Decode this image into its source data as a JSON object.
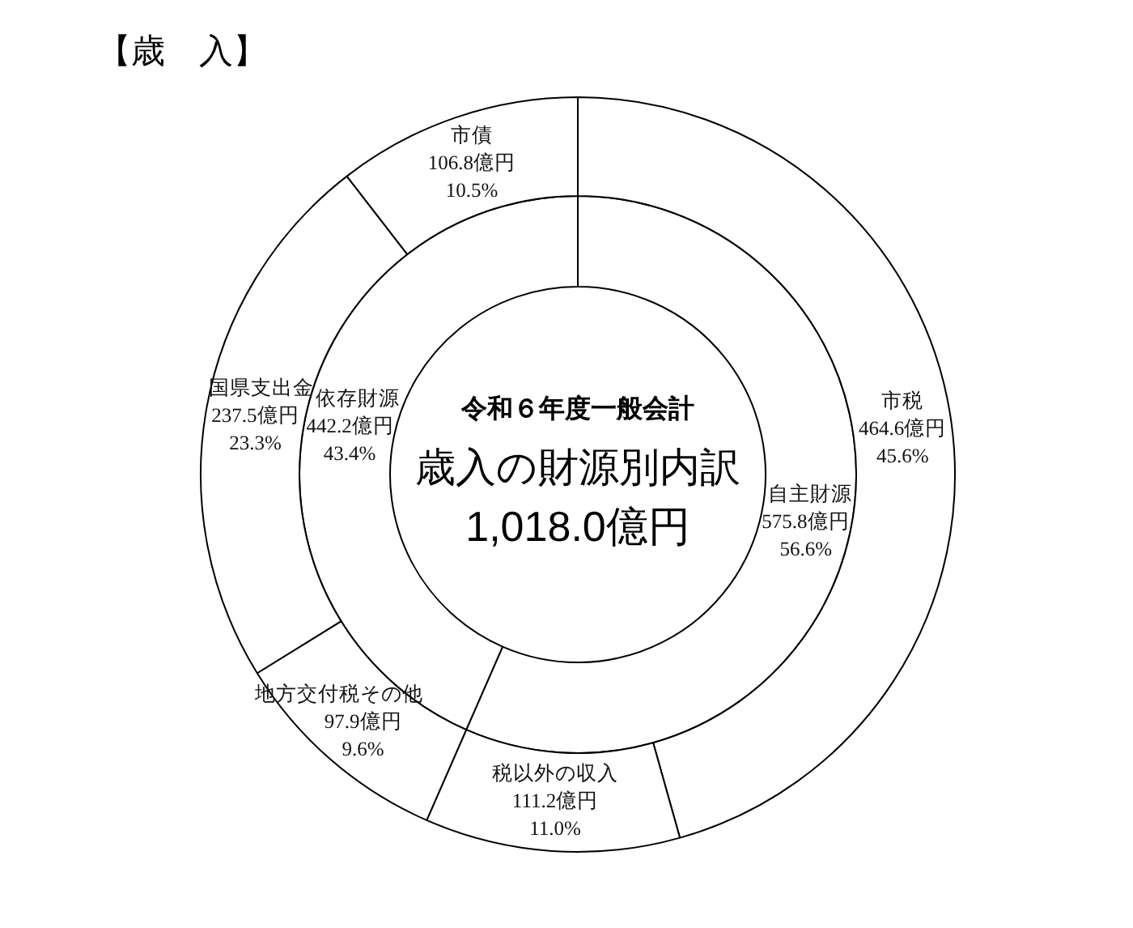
{
  "chart_data": [
    {
      "type": "donut",
      "title": "【歳　入】",
      "categories": [
        "市税",
        "税以外の収入",
        "地方交付税その他",
        "国県支出金",
        "市債"
      ],
      "values": [
        464.6,
        111.2,
        97.9,
        237.5,
        106.8
      ],
      "colors": [
        "#ffffff",
        "#ffffff",
        "#ffffff",
        "#ffffff",
        "#ffffff"
      ],
      "value_labels": [
        "464.6億円\n45.6%",
        "111.2億円\n11.0%",
        "97.9億円\n9.6%",
        "237.5億円\n23.3%",
        "106.8億円\n10.5%"
      ]
    },
    {
      "type": "donut",
      "title": "歳入の財源別内訳",
      "subtitle": "令和６年度一般会計",
      "annotations": [
        "1,018.0億円"
      ],
      "categories": [
        "自主財源",
        "依存財源"
      ],
      "values": [
        575.8,
        442.2
      ],
      "colors": [
        "#ffffff",
        "#ffffff"
      ],
      "value_labels": [
        "575.8億円\n56.6%",
        "442.2億円\n43.4%"
      ]
    }
  ]
}
